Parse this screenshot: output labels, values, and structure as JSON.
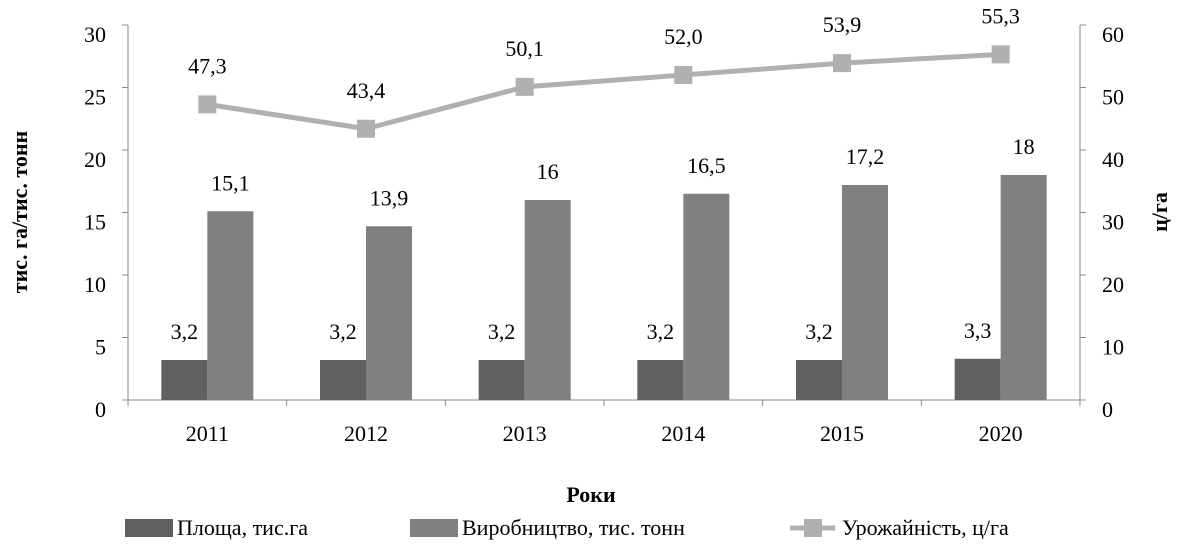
{
  "chart_data": {
    "type": "bar",
    "categories": [
      "2011",
      "2012",
      "2013",
      "2014",
      "2015",
      "2020"
    ],
    "series": [
      {
        "name": "Площа, тис.га",
        "color": "#606060",
        "values": [
          3.2,
          3.2,
          3.2,
          3.2,
          3.2,
          3.3
        ],
        "value_labels": [
          "3,2",
          "3,2",
          "3,2",
          "3,2",
          "3,2",
          "3,3"
        ]
      },
      {
        "name": "Виробництво, тис. тонн",
        "color": "#808080",
        "values": [
          15.1,
          13.9,
          16,
          16.5,
          17.2,
          18
        ],
        "value_labels": [
          "15,1",
          "13,9",
          "16",
          "16,5",
          "17,2",
          "18"
        ]
      },
      {
        "name": "Урожайність, ц/га",
        "color": "#b0b0b0",
        "type": "line",
        "axis": "y2",
        "values": [
          47.3,
          43.4,
          50.1,
          52.0,
          53.9,
          55.3
        ],
        "value_labels": [
          "47,3",
          "43,4",
          "50,1",
          "52,0",
          "53,9",
          "55,3"
        ]
      }
    ],
    "x_label": "Роки",
    "y_label": "тис. га/тис. тонн",
    "y2_label": "ц/га",
    "ylim": [
      0,
      30
    ],
    "yticks": [
      0,
      5,
      10,
      15,
      20,
      25,
      30
    ],
    "y2lim": [
      0,
      60
    ],
    "y2ticks": [
      0,
      10,
      20,
      30,
      40,
      50,
      60
    ],
    "grid": false
  }
}
